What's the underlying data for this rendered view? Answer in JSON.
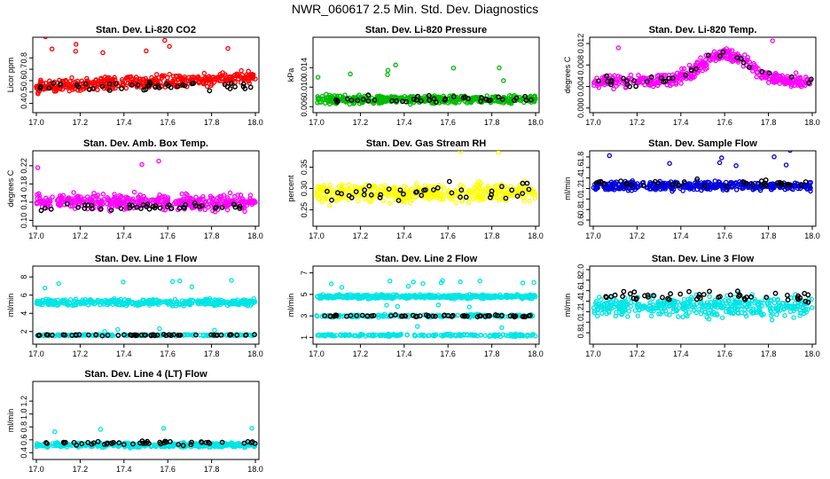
{
  "title": "NWR_060617  2.5 Min. Std. Dev. Diagnostics",
  "colors": {
    "black_series": "#000000"
  },
  "chart_data": [
    {
      "type": "scatter",
      "title": "Stan. Dev. Li-820 CO2",
      "ylabel": "Licor ppm",
      "color": "#ff0000",
      "xlim": [
        17.0,
        18.0
      ],
      "ylim": [
        0.35,
        0.95
      ],
      "xticks": [
        "17.0",
        "17.2",
        "17.4",
        "17.6",
        "17.8",
        "18.0"
      ],
      "yticks": [
        "0.4",
        "0.5",
        "0.6",
        "0.7",
        "0.8"
      ],
      "ytick_values": [
        0.4,
        0.5,
        0.6,
        0.7,
        0.8
      ],
      "band": {
        "base": 0.55,
        "trend": 0.08,
        "spread": 0.08
      },
      "black": {
        "base": 0.55,
        "spread": 0.06,
        "count": 45
      }
    },
    {
      "type": "scatter",
      "title": "Stan. Dev. Li-820 Pressure",
      "ylabel": "kPa",
      "color": "#00bb00",
      "xlim": [
        17.0,
        18.0
      ],
      "ylim": [
        0.0055,
        0.0195
      ],
      "xticks": [
        "17.0",
        "17.2",
        "17.4",
        "17.6",
        "17.8",
        "18.0"
      ],
      "yticks": [
        "0.006",
        "0.010",
        "0.014"
      ],
      "ytick_values": [
        0.006,
        0.01,
        0.014
      ],
      "band": {
        "base": 0.0075,
        "trend": 0.0,
        "spread": 0.0012
      },
      "black": {
        "base": 0.0075,
        "spread": 0.001,
        "count": 40
      }
    },
    {
      "type": "scatter",
      "title": "Stan. Dev. Li-820 Temp.",
      "ylabel": "degrees C",
      "color": "#ff00ff",
      "xlim": [
        17.0,
        18.0
      ],
      "ylim": [
        -0.0002,
        0.0125
      ],
      "xticks": [
        "17.0",
        "17.2",
        "17.4",
        "17.6",
        "17.8",
        "18.0"
      ],
      "yticks": [
        "0.000",
        "0.004",
        "0.008",
        "0.012"
      ],
      "ytick_values": [
        0.0,
        0.004,
        0.008,
        0.012
      ],
      "band": {
        "base": 0.005,
        "trend": 0.0,
        "spread": 0.0018,
        "hump": 0.005
      },
      "black": {
        "base": 0.005,
        "spread": 0.0015,
        "count": 35
      }
    },
    {
      "type": "scatter",
      "title": "Stan. Dev. Amb. Box Temp.",
      "ylabel": "degrees C",
      "color": "#ff00ff",
      "xlim": [
        17.0,
        18.0
      ],
      "ylim": [
        0.095,
        0.245
      ],
      "xticks": [
        "17.0",
        "17.2",
        "17.4",
        "17.6",
        "17.8",
        "18.0"
      ],
      "yticks": [
        "0.10",
        "0.14",
        "0.18",
        "0.22"
      ],
      "ytick_values": [
        0.1,
        0.14,
        0.18,
        0.22
      ],
      "band": {
        "base": 0.14,
        "trend": 0.0,
        "spread": 0.025
      },
      "black": {
        "base": 0.13,
        "spread": 0.012,
        "count": 45
      }
    },
    {
      "type": "scatter",
      "title": "Stan. Dev. Gas Stream RH",
      "ylabel": "percent",
      "color": "#ffff00",
      "xlim": [
        17.0,
        18.0
      ],
      "ylim": [
        0.22,
        0.38
      ],
      "xticks": [
        "17.0",
        "17.2",
        "17.4",
        "17.6",
        "17.8",
        "18.0"
      ],
      "yticks": [
        "0.25",
        "0.30",
        "0.35"
      ],
      "ytick_values": [
        0.25,
        0.3,
        0.35
      ],
      "band": {
        "base": 0.29,
        "trend": 0.0,
        "spread": 0.03
      },
      "black": {
        "base": 0.29,
        "spread": 0.03,
        "count": 40
      }
    },
    {
      "type": "scatter",
      "title": "Stan. Dev. Sample Flow",
      "ylabel": "ml/min",
      "color": "#0000dd",
      "xlim": [
        17.0,
        18.0
      ],
      "ylim": [
        0.55,
        1.85
      ],
      "xticks": [
        "17.0",
        "17.2",
        "17.4",
        "17.6",
        "17.8",
        "18.0"
      ],
      "yticks": [
        "0.6",
        "0.8",
        "1.0",
        "1.2",
        "1.4",
        "1.6",
        "1.8"
      ],
      "ytick_values": [
        0.6,
        0.8,
        1.0,
        1.2,
        1.4,
        1.6,
        1.8
      ],
      "band": {
        "base": 1.25,
        "trend": 0.0,
        "spread": 0.12
      },
      "black": {
        "base": 1.3,
        "spread": 0.12,
        "count": 35
      }
    },
    {
      "type": "scatter",
      "title": "Stan. Dev. Line 1 Flow",
      "ylabel": "ml/min",
      "color": "#00e5e5",
      "xlim": [
        17.0,
        18.0
      ],
      "ylim": [
        1.0,
        8.8
      ],
      "xticks": [
        "17.0",
        "17.2",
        "17.4",
        "17.6",
        "17.8",
        "18.0"
      ],
      "yticks": [
        "2",
        "4",
        "6",
        "8"
      ],
      "ytick_values": [
        2,
        4,
        6,
        8
      ],
      "band": {
        "base": 5.2,
        "trend": 0.0,
        "spread": 0.5
      },
      "band2": {
        "base": 1.6,
        "spread": 0.12
      },
      "black": {
        "base": 1.6,
        "spread": 0.1,
        "count": 55
      }
    },
    {
      "type": "scatter",
      "title": "Stan. Dev. Line 2 Flow",
      "ylabel": "ml/min",
      "color": "#00e5e5",
      "xlim": [
        17.0,
        18.0
      ],
      "ylim": [
        0.7,
        7.3
      ],
      "xticks": [
        "17.0",
        "17.2",
        "17.4",
        "17.6",
        "17.8",
        "18.0"
      ],
      "yticks": [
        "1",
        "3",
        "5",
        "7"
      ],
      "ytick_values": [
        1,
        3,
        5,
        7
      ],
      "band": {
        "base": 4.8,
        "trend": 0.0,
        "spread": 0.25
      },
      "band2": {
        "base": 1.2,
        "spread": 0.15
      },
      "band3": {
        "base": 3.0,
        "spread": 0.2
      },
      "black": {
        "base": 3.0,
        "spread": 0.15,
        "count": 60
      }
    },
    {
      "type": "scatter",
      "title": "Stan. Dev. Line 3 Flow",
      "ylabel": "ml/min",
      "color": "#00e5e5",
      "xlim": [
        17.0,
        18.0
      ],
      "ylim": [
        0.65,
        2.0
      ],
      "xticks": [
        "17.0",
        "17.2",
        "17.4",
        "17.6",
        "17.8",
        "18.0"
      ],
      "yticks": [
        "0.8",
        "1.0",
        "1.2",
        "1.4",
        "1.6",
        "1.8",
        "2.0"
      ],
      "ytick_values": [
        0.8,
        1.0,
        1.2,
        1.4,
        1.6,
        1.8,
        2.0
      ],
      "band": {
        "base": 1.3,
        "trend": 0.0,
        "spread": 0.28
      },
      "black": {
        "base": 1.5,
        "spread": 0.15,
        "count": 50
      }
    },
    {
      "type": "scatter",
      "title": "Stan. Dev. Line 4 (LT) Flow",
      "ylabel": "ml/min",
      "color": "#00e5e5",
      "xlim": [
        17.0,
        18.0
      ],
      "ylim": [
        0.35,
        1.45
      ],
      "xticks": [
        "17.0",
        "17.2",
        "17.4",
        "17.6",
        "17.8",
        "18.0"
      ],
      "yticks": [
        "0.4",
        "0.6",
        "0.8",
        "1.0",
        "1.2"
      ],
      "ytick_values": [
        0.4,
        0.6,
        0.8,
        1.0,
        1.2
      ],
      "band": {
        "base": 0.52,
        "trend": 0.0,
        "spread": 0.05
      },
      "black": {
        "base": 0.55,
        "spread": 0.05,
        "count": 50
      }
    }
  ]
}
